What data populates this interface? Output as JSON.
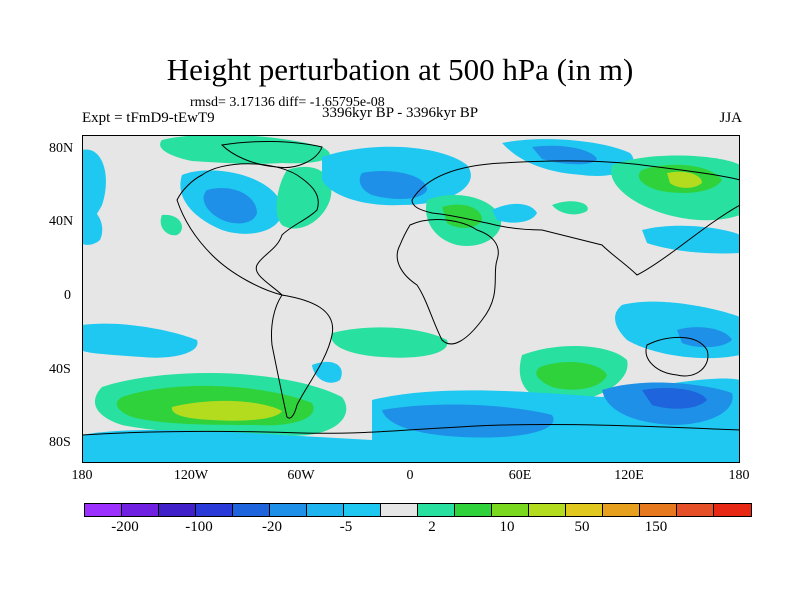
{
  "title": "Height perturbation at 500 hPa (in m)",
  "stats": "rmsd= 3.17136 diff= -1.65795e-08",
  "experiment": "Expt = tFmD9-tEwT9",
  "period": "3396kyr BP - 3396kyr BP",
  "season": "JJA",
  "map": {
    "projection": "cylindrical equidistant",
    "lat_labels": [
      "80N",
      "40N",
      "0",
      "40S",
      "80S"
    ],
    "lon_labels": [
      "180",
      "120W",
      "60W",
      "0",
      "60E",
      "120E",
      "180"
    ],
    "land_background": "#e6e6e6"
  },
  "colorbar": {
    "colors": [
      "#9b30ff",
      "#7020e0",
      "#4020c8",
      "#2a3ad8",
      "#1e64dc",
      "#1e90e8",
      "#1eb4f0",
      "#1ec8f0",
      "#e6e6e6",
      "#28e0a0",
      "#30d23c",
      "#7ad81e",
      "#b4dc1e",
      "#e0c81e",
      "#e6a01e",
      "#e6781e",
      "#e65028",
      "#e62814"
    ],
    "labels": [
      "-200",
      "-100",
      "-20",
      "-5",
      "2",
      "10",
      "50",
      "150"
    ]
  }
}
